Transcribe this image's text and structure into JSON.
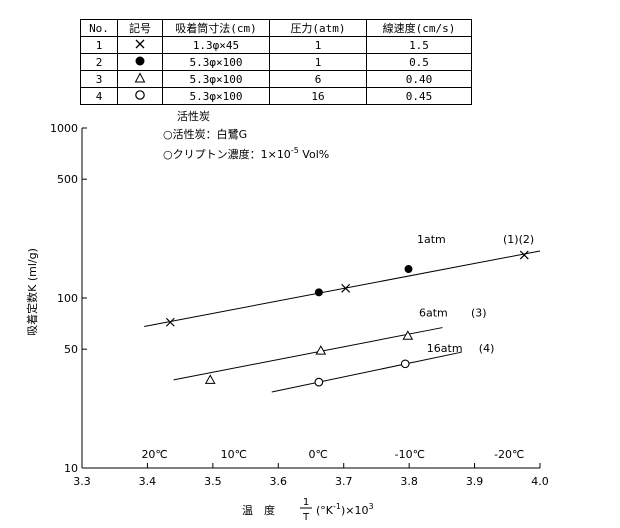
{
  "table": {
    "headers": [
      "No.",
      "記号",
      "吸着筒寸法(cm)",
      "圧力(atm)",
      "線速度(cm/s)"
    ],
    "rows": [
      {
        "no": "1",
        "symbol": "cross",
        "size": "1.3φ×45",
        "pressure": "1",
        "velocity": "1.5"
      },
      {
        "no": "2",
        "symbol": "filled-circle",
        "size": "5.3φ×100",
        "pressure": "1",
        "velocity": "0.5"
      },
      {
        "no": "3",
        "symbol": "triangle",
        "size": "5.3φ×100",
        "pressure": "6",
        "velocity": "0.40"
      },
      {
        "no": "4",
        "symbol": "open-circle",
        "size": "5.3φ×100",
        "pressure": "16",
        "velocity": "0.45"
      }
    ]
  },
  "notes": {
    "heading": "活性炭",
    "line1": "○活性炭：白鷺G",
    "line2_prefix": "○クリプトン濃度：1×10",
    "line2_exp": "-5",
    "line2_suffix": " Vol%"
  },
  "chart_data": {
    "type": "scatter",
    "ylabel": "吸着定数K (ml/g)",
    "xlabel_prefix": "温　度",
    "xlabel_frac_num": "1",
    "xlabel_frac_den": "T",
    "xlabel_suffix_a": "(°K",
    "xlabel_suffix_exp": "-1",
    "xlabel_suffix_b": ")×10",
    "xlabel_suffix_exp2": "3",
    "xlim": [
      3.3,
      4.0
    ],
    "ylim": [
      10,
      1000
    ],
    "yscale": "log",
    "x_ticks": [
      "3.3",
      "3.4",
      "3.5",
      "3.6",
      "3.7",
      "3.8",
      "3.9",
      "4.0"
    ],
    "y_ticks": [
      {
        "value": 1000,
        "label": "1000"
      },
      {
        "value": 500,
        "label": "500"
      },
      {
        "value": 100,
        "label": "100"
      },
      {
        "value": 50,
        "label": "50"
      },
      {
        "value": 10,
        "label": "10"
      }
    ],
    "temperature_labels": [
      {
        "x": 3.411,
        "label": "20℃"
      },
      {
        "x": 3.532,
        "label": "10℃"
      },
      {
        "x": 3.661,
        "label": "0℃"
      },
      {
        "x": 3.801,
        "label": "-10℃"
      },
      {
        "x": 3.953,
        "label": "-20℃"
      }
    ],
    "series": [
      {
        "name": "1atm",
        "tag": "(1)(2)",
        "symbol": "cross",
        "points": [
          [
            3.435,
            72
          ],
          [
            3.703,
            114
          ],
          [
            3.976,
            179
          ]
        ]
      },
      {
        "symbol": "filled-circle",
        "points": [
          [
            3.662,
            108
          ],
          [
            3.799,
            148
          ]
        ]
      },
      {
        "name": "6atm",
        "tag": "(3)",
        "symbol": "triangle",
        "points": [
          [
            3.496,
            33
          ],
          [
            3.665,
            49
          ],
          [
            3.798,
            60
          ]
        ]
      },
      {
        "name": "16atm",
        "tag": "(4)",
        "symbol": "open-circle",
        "points": [
          [
            3.662,
            32
          ],
          [
            3.794,
            41
          ]
        ]
      }
    ],
    "fit_lines": [
      {
        "from": [
          3.395,
          68
        ],
        "to": [
          4.0,
          189
        ]
      },
      {
        "from": [
          3.44,
          33
        ],
        "to": [
          3.851,
          67
        ]
      },
      {
        "from": [
          3.59,
          28
        ],
        "to": [
          3.88,
          48
        ]
      }
    ],
    "series_labels": [
      {
        "series": 0,
        "x": 3.812,
        "y": 210
      },
      {
        "series": 2,
        "x": 3.815,
        "y": 78
      },
      {
        "series": 3,
        "x": 3.827,
        "y": 48
      }
    ]
  }
}
